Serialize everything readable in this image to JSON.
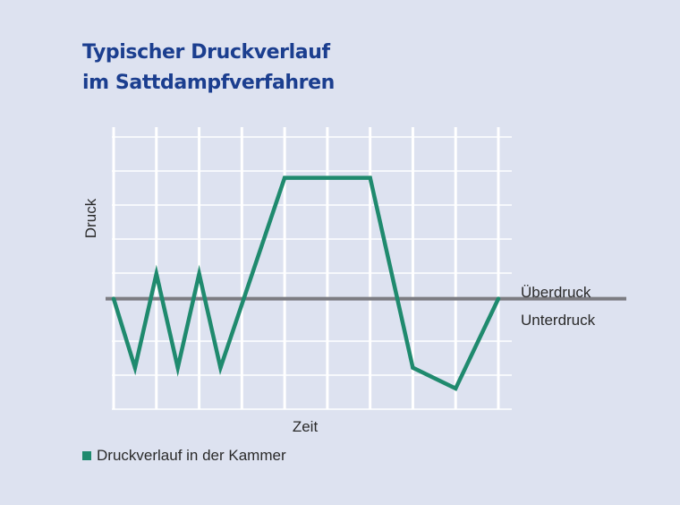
{
  "title_lines": [
    "Typischer Druckverlauf",
    "im Sattdampfverfahren"
  ],
  "colors": {
    "background": "#dde2f0",
    "series": "#1f8a6e",
    "baseline": "#7c7c82",
    "title": "#1b3e8f",
    "grid": "#ffffff"
  },
  "chart_data": {
    "type": "line",
    "xlabel": "Zeit",
    "ylabel": "Druck",
    "xlim": [
      0,
      9
    ],
    "ylim": [
      -1.6,
      2.6
    ],
    "grid": true,
    "legend_position": "bottom-left",
    "reference_line": {
      "y": 0,
      "label_above": "Überdruck",
      "label_below": "Unterdruck"
    },
    "series": [
      {
        "name": "Druckverlauf in der Kammer",
        "color": "#1f8a6e",
        "x": [
          0,
          0.5,
          1.0,
          1.5,
          2.0,
          2.5,
          4.0,
          6.0,
          7.0,
          8.0,
          9.0
        ],
        "y": [
          0,
          -1.0,
          0.36,
          -1.0,
          0.36,
          -1.0,
          1.75,
          1.75,
          -1.0,
          -1.3,
          0
        ]
      }
    ]
  }
}
